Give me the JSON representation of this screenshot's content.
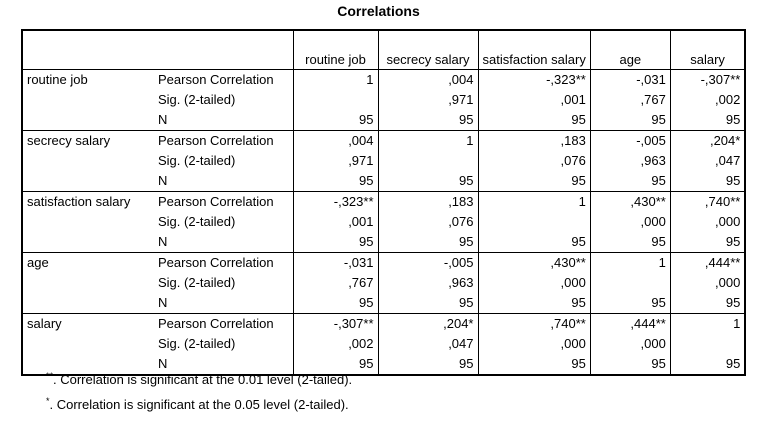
{
  "title": "Correlations",
  "columns": [
    "routine job",
    "secrecy salary",
    "satisfaction salary",
    "age",
    "salary"
  ],
  "stat_labels": [
    "Pearson Correlation",
    "Sig. (2-tailed)",
    "N"
  ],
  "rows": [
    {
      "variable": "routine job",
      "pearson": [
        "1",
        ",004",
        "-,323**",
        "-,031",
        "-,307**"
      ],
      "sig": [
        "",
        ",971",
        ",001",
        ",767",
        ",002"
      ],
      "n": [
        "95",
        "95",
        "95",
        "95",
        "95"
      ]
    },
    {
      "variable": "secrecy salary",
      "pearson": [
        ",004",
        "1",
        ",183",
        "-,005",
        ",204*"
      ],
      "sig": [
        ",971",
        "",
        ",076",
        ",963",
        ",047"
      ],
      "n": [
        "95",
        "95",
        "95",
        "95",
        "95"
      ]
    },
    {
      "variable": "satisfaction salary",
      "pearson": [
        "-,323**",
        ",183",
        "1",
        ",430**",
        ",740**"
      ],
      "sig": [
        ",001",
        ",076",
        "",
        ",000",
        ",000"
      ],
      "n": [
        "95",
        "95",
        "95",
        "95",
        "95"
      ]
    },
    {
      "variable": "age",
      "pearson": [
        "-,031",
        "-,005",
        ",430**",
        "1",
        ",444**"
      ],
      "sig": [
        ",767",
        ",963",
        ",000",
        "",
        ",000"
      ],
      "n": [
        "95",
        "95",
        "95",
        "95",
        "95"
      ]
    },
    {
      "variable": "salary",
      "pearson": [
        "-,307**",
        ",204*",
        ",740**",
        ",444**",
        "1"
      ],
      "sig": [
        ",002",
        ",047",
        ",000",
        ",000",
        ""
      ],
      "n": [
        "95",
        "95",
        "95",
        "95",
        "95"
      ]
    }
  ],
  "footnotes": [
    {
      "mark": "**",
      "text": ". Correlation is significant at the 0.01 level (2-tailed)."
    },
    {
      "mark": "*",
      "text": ". Correlation is significant at the 0.05 level (2-tailed)."
    }
  ]
}
